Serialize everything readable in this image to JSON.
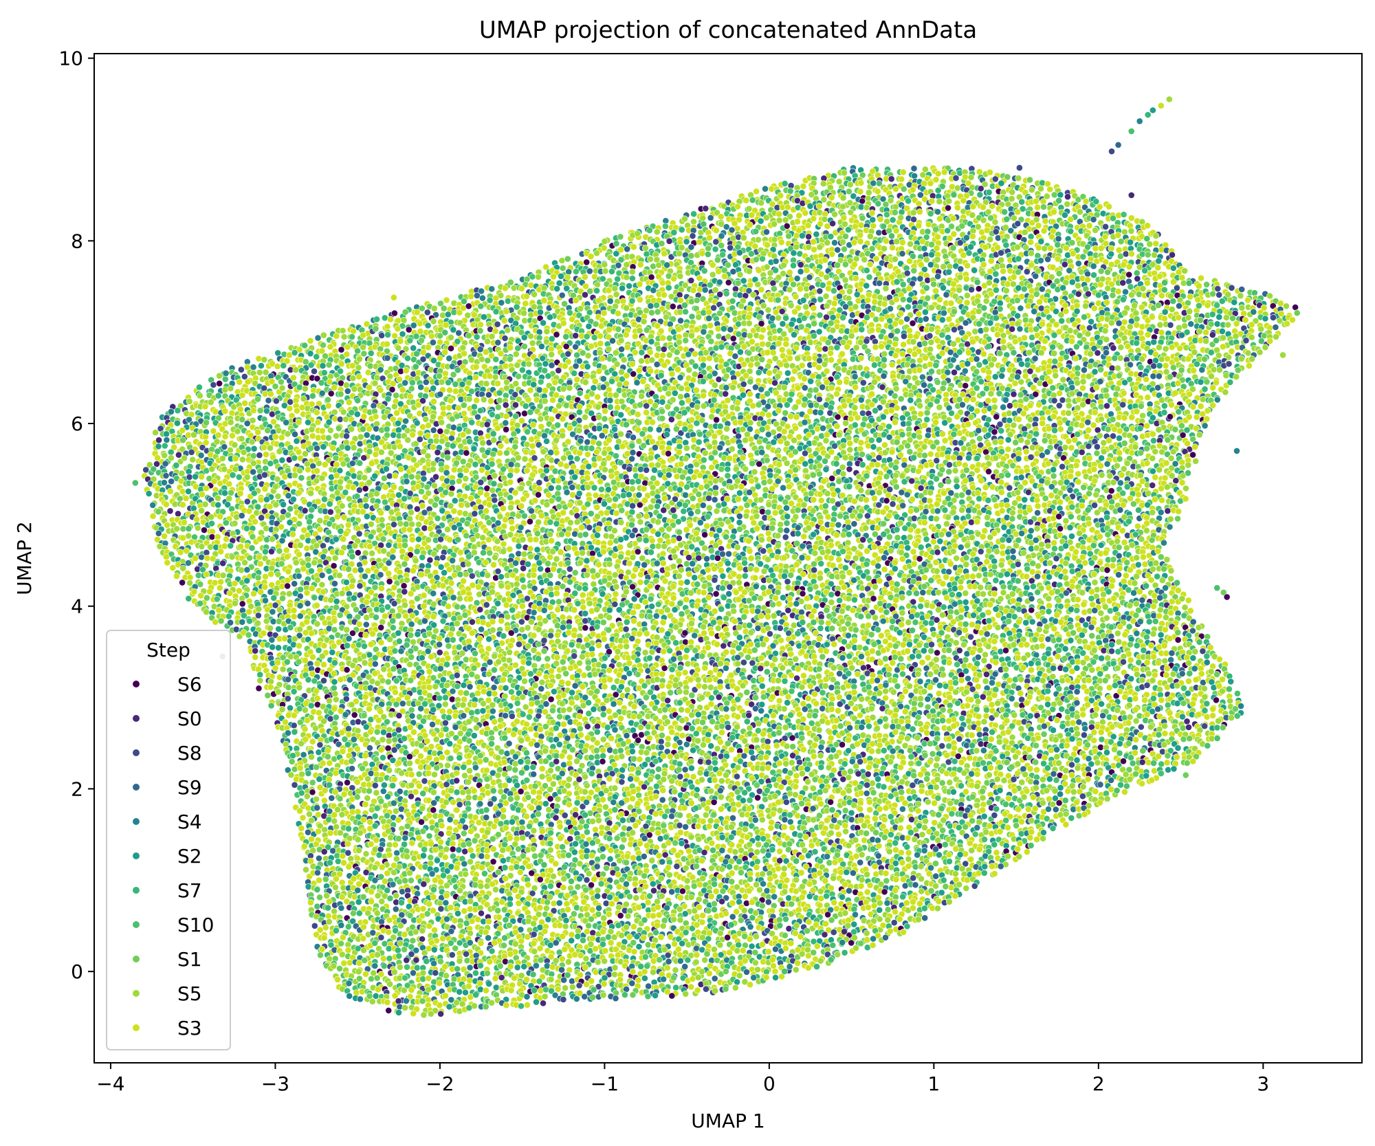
{
  "chart_data": {
    "type": "scatter",
    "title": "UMAP projection of concatenated AnnData",
    "xlabel": "UMAP 1",
    "ylabel": "UMAP 2",
    "xlim": [
      -4.1,
      3.6
    ],
    "ylim": [
      -1.0,
      10.05
    ],
    "xticks": [
      -4,
      -3,
      -2,
      -1,
      0,
      1,
      2,
      3
    ],
    "xtick_labels": [
      "−4",
      "−3",
      "−2",
      "−1",
      "0",
      "1",
      "2",
      "3"
    ],
    "yticks": [
      0,
      2,
      4,
      6,
      8,
      10
    ],
    "ytick_labels": [
      "0",
      "2",
      "4",
      "6",
      "8",
      "10"
    ],
    "grid": false,
    "legend": {
      "title": "Step",
      "placement": "lower-left",
      "entries": [
        {
          "name": "S6",
          "color": "#440154"
        },
        {
          "name": "S0",
          "color": "#482878"
        },
        {
          "name": "S8",
          "color": "#3e4989"
        },
        {
          "name": "S9",
          "color": "#31688e"
        },
        {
          "name": "S4",
          "color": "#26828e"
        },
        {
          "name": "S2",
          "color": "#1f9e89"
        },
        {
          "name": "S7",
          "color": "#35b779"
        },
        {
          "name": "S10",
          "color": "#4ac16d"
        },
        {
          "name": "S1",
          "color": "#6ece58"
        },
        {
          "name": "S5",
          "color": "#9fda3a"
        },
        {
          "name": "S3",
          "color": "#cde11d"
        }
      ]
    },
    "cloud_outline": [
      [
        -3.8,
        5.4
      ],
      [
        -3.7,
        6.1
      ],
      [
        -3.3,
        6.6
      ],
      [
        -2.5,
        7.1
      ],
      [
        -1.9,
        7.4
      ],
      [
        -1.5,
        7.6
      ],
      [
        -1.0,
        8.0
      ],
      [
        -0.5,
        8.3
      ],
      [
        0.0,
        8.6
      ],
      [
        0.5,
        8.8
      ],
      [
        1.2,
        8.8
      ],
      [
        1.8,
        8.6
      ],
      [
        2.3,
        8.2
      ],
      [
        2.6,
        7.6
      ],
      [
        2.9,
        7.5
      ],
      [
        3.25,
        7.25
      ],
      [
        3.0,
        6.8
      ],
      [
        2.7,
        6.2
      ],
      [
        2.6,
        5.6
      ],
      [
        2.5,
        5.0
      ],
      [
        2.4,
        4.6
      ],
      [
        2.6,
        3.9
      ],
      [
        2.8,
        3.3
      ],
      [
        2.88,
        2.85
      ],
      [
        2.6,
        2.3
      ],
      [
        2.2,
        2.0
      ],
      [
        1.8,
        1.6
      ],
      [
        1.4,
        1.1
      ],
      [
        0.8,
        0.4
      ],
      [
        0.3,
        0.05
      ],
      [
        -0.3,
        -0.25
      ],
      [
        -1.0,
        -0.3
      ],
      [
        -1.6,
        -0.4
      ],
      [
        -2.2,
        -0.5
      ],
      [
        -2.6,
        -0.25
      ],
      [
        -2.75,
        0.2
      ],
      [
        -2.8,
        0.9
      ],
      [
        -2.9,
        2.0
      ],
      [
        -3.0,
        2.8
      ],
      [
        -3.2,
        3.6
      ],
      [
        -3.5,
        4.0
      ],
      [
        -3.7,
        4.6
      ]
    ],
    "outlier_points": [
      {
        "x": 2.43,
        "y": 9.55,
        "series": "S5"
      },
      {
        "x": 2.38,
        "y": 9.48,
        "series": "S3"
      },
      {
        "x": 2.33,
        "y": 9.43,
        "series": "S2"
      },
      {
        "x": 2.3,
        "y": 9.38,
        "series": "S7"
      },
      {
        "x": 2.25,
        "y": 9.31,
        "series": "S4"
      },
      {
        "x": 2.2,
        "y": 9.2,
        "series": "S10"
      },
      {
        "x": 2.12,
        "y": 9.05,
        "series": "S9"
      },
      {
        "x": 2.08,
        "y": 8.98,
        "series": "S8"
      },
      {
        "x": 2.2,
        "y": 8.5,
        "series": "S0"
      },
      {
        "x": 3.12,
        "y": 6.75,
        "series": "S5"
      },
      {
        "x": 2.84,
        "y": 5.7,
        "series": "S4"
      },
      {
        "x": 2.72,
        "y": 4.2,
        "series": "S10"
      },
      {
        "x": 2.76,
        "y": 4.15,
        "series": "S1"
      },
      {
        "x": 2.78,
        "y": 4.1,
        "series": "S6"
      },
      {
        "x": -3.85,
        "y": 5.35,
        "series": "S10"
      },
      {
        "x": -3.32,
        "y": 3.45,
        "series": "S8"
      },
      {
        "x": -3.1,
        "y": 3.1,
        "series": "S6"
      },
      {
        "x": -3.3,
        "y": 6.55,
        "series": "S4"
      },
      {
        "x": -2.28,
        "y": 7.38,
        "series": "S3"
      },
      {
        "x": -0.8,
        "y": 8.08,
        "series": "S5"
      },
      {
        "x": 1.52,
        "y": 8.8,
        "series": "S8"
      },
      {
        "x": -2.25,
        "y": -0.45,
        "series": "S2"
      },
      {
        "x": 2.53,
        "y": 2.15,
        "series": "S1"
      }
    ]
  }
}
